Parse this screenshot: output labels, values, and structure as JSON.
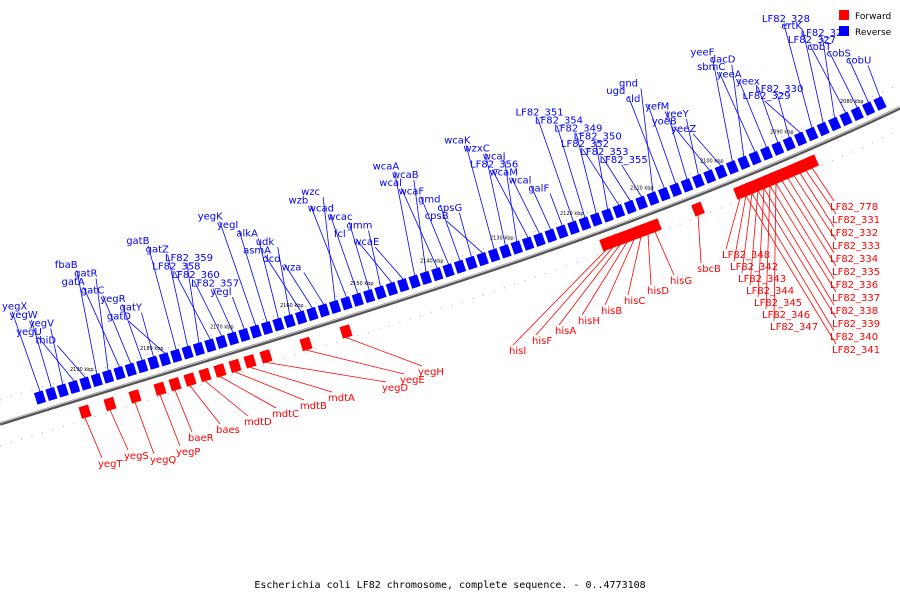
{
  "caption": "Escherichia coli LF82 chromosome, complete sequence. - 0..4773108",
  "legend": [
    {
      "label": "Forward",
      "color": "#ff0000"
    },
    {
      "label": "Reverse",
      "color": "#0000ff"
    }
  ],
  "colors": {
    "forward": "#ff0000",
    "reverse": "#0000ff",
    "axis": "#666666"
  },
  "ticks": [
    "2080 kbp",
    "2090 kbp",
    "2100 kbp",
    "2110 kbp",
    "2120 kbp",
    "2130 kbp",
    "2140 kbp",
    "2150 kbp",
    "2160 kbp",
    "2170 kbp",
    "2180 kbp",
    "2190 kbp"
  ],
  "reverse_genes": [
    "cobU",
    "cobS",
    "cobT",
    "LF82_327",
    "LF82_324",
    "ertK",
    "LF82_328",
    "LF82_329",
    "LF82_330",
    "yeex",
    "yeeA",
    "sbmC",
    "dacD",
    "yeeF",
    "yeeZ",
    "yoeB",
    "yeeY",
    "yefM",
    "cld",
    "ugd",
    "gnd",
    "LF82_355",
    "LF82_353",
    "LF82_352",
    "LF82_350",
    "LF82_349",
    "LF82_354",
    "LF82_351",
    "galF",
    "wcal",
    "wcaM",
    "LF82_356",
    "wcaJ",
    "wzxC",
    "wcaK",
    "cpsB",
    "cpsG",
    "gmd",
    "wcaF",
    "wcal",
    "wcaB",
    "wcaA",
    "wcaE",
    "fcl",
    "gmm",
    "wcac",
    "wcad",
    "wzb",
    "wzc",
    "wza",
    "dcd",
    "asmA",
    "udk",
    "alkA",
    "yegI",
    "yegK",
    "yegl",
    "LF82_357",
    "LF82_360",
    "LF82_358",
    "LF82_359",
    "gatZ",
    "gatB",
    "gatD",
    "gatY",
    "yegR",
    "gatC",
    "gatA",
    "gatR",
    "fbaB",
    "thiD",
    "yegU",
    "yegV",
    "yegW",
    "yegX"
  ],
  "forward_genes": [
    "LF82_778",
    "LF82_331",
    "LF82_332",
    "LF82_333",
    "LF82_334",
    "LF82_335",
    "LF82_336",
    "LF82_337",
    "LF82_338",
    "LF82_339",
    "LF82_340",
    "LF82_341",
    "LF82_348",
    "LF82_342",
    "LF82_343",
    "LF82_344",
    "LF82_345",
    "LF82_346",
    "LF82_347",
    "sbcB",
    "hisG",
    "hisD",
    "hisC",
    "hisB",
    "hisH",
    "hisA",
    "hisF",
    "hisI",
    "yegH",
    "yegE",
    "yegD",
    "mdtA",
    "mdtB",
    "mdtC",
    "mdtD",
    "baes",
    "baeR",
    "yegP",
    "yegQ",
    "yegS",
    "yegT"
  ]
}
